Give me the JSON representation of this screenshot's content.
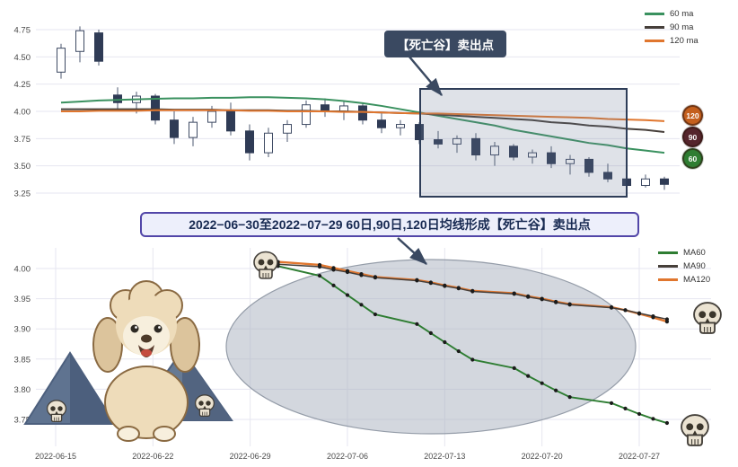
{
  "banner": {
    "text": "2022−06−30至2022−07−29 60日,90日,120日均线形成【死亡谷】卖出点"
  },
  "icons": {
    "skull": "skull-icon",
    "dog": "dog-illustration",
    "mountain": "mountain-icon"
  },
  "chart_data": [
    {
      "type": "candlestick",
      "title": "",
      "xlabel": "",
      "ylabel": "",
      "yticks": [
        "4.75",
        "4.50",
        "4.25",
        "4.00",
        "3.75",
        "3.50",
        "3.25"
      ],
      "ylim": [
        3.18,
        4.93
      ],
      "grid": true,
      "legend_position": "upper right",
      "legend": [
        {
          "label": "60 ma",
          "color": "#3a915f"
        },
        {
          "label": "90 ma",
          "color": "#463f3a"
        },
        {
          "label": "120 ma",
          "color": "#e0762e"
        }
      ],
      "annotation": {
        "label": "【死亡谷】卖出点"
      },
      "badges": [
        {
          "label": "120",
          "bg": "#c45f1d"
        },
        {
          "label": "90",
          "bg": "#55252c"
        },
        {
          "label": "60",
          "bg": "#2e7d32"
        }
      ],
      "candles": [
        [
          4.36,
          4.62,
          4.3,
          4.58
        ],
        [
          4.55,
          4.78,
          4.45,
          4.74
        ],
        [
          4.72,
          4.75,
          4.42,
          4.46
        ],
        [
          4.15,
          4.22,
          4.02,
          4.08
        ],
        [
          4.08,
          4.18,
          3.98,
          4.14
        ],
        [
          4.14,
          4.16,
          3.88,
          3.92
        ],
        [
          3.92,
          4.0,
          3.7,
          3.76
        ],
        [
          3.76,
          3.95,
          3.68,
          3.9
        ],
        [
          3.9,
          4.05,
          3.85,
          4.0
        ],
        [
          4.0,
          4.08,
          3.78,
          3.82
        ],
        [
          3.82,
          3.88,
          3.55,
          3.62
        ],
        [
          3.62,
          3.85,
          3.58,
          3.8
        ],
        [
          3.8,
          3.92,
          3.72,
          3.88
        ],
        [
          3.88,
          4.1,
          3.85,
          4.06
        ],
        [
          4.06,
          4.12,
          3.95,
          4.0
        ],
        [
          4.0,
          4.1,
          3.92,
          4.05
        ],
        [
          4.05,
          4.08,
          3.88,
          3.92
        ],
        [
          3.92,
          3.98,
          3.8,
          3.85
        ],
        [
          3.85,
          3.92,
          3.78,
          3.88
        ],
        [
          3.88,
          3.9,
          3.7,
          3.74
        ],
        [
          3.74,
          3.82,
          3.66,
          3.7
        ],
        [
          3.7,
          3.78,
          3.62,
          3.75
        ],
        [
          3.75,
          3.8,
          3.55,
          3.6
        ],
        [
          3.6,
          3.72,
          3.5,
          3.68
        ],
        [
          3.68,
          3.7,
          3.55,
          3.58
        ],
        [
          3.58,
          3.65,
          3.52,
          3.62
        ],
        [
          3.62,
          3.68,
          3.48,
          3.52
        ],
        [
          3.52,
          3.6,
          3.42,
          3.56
        ],
        [
          3.56,
          3.58,
          3.4,
          3.44
        ],
        [
          3.44,
          3.52,
          3.35,
          3.38
        ],
        [
          3.38,
          3.45,
          3.28,
          3.32
        ],
        [
          3.32,
          3.42,
          3.3,
          3.38
        ],
        [
          3.38,
          3.4,
          3.28,
          3.33
        ]
      ],
      "series": [
        {
          "name": "60 ma",
          "color": "#3a915f",
          "values": [
            4.08,
            4.09,
            4.1,
            4.105,
            4.11,
            4.115,
            4.12,
            4.12,
            4.125,
            4.125,
            4.13,
            4.13,
            4.125,
            4.12,
            4.11,
            4.095,
            4.075,
            4.05,
            4.02,
            3.99,
            3.96,
            3.93,
            3.9,
            3.87,
            3.83,
            3.8,
            3.77,
            3.74,
            3.71,
            3.69,
            3.66,
            3.64,
            3.62
          ]
        },
        {
          "name": "90 ma",
          "color": "#463f3a",
          "values": [
            4.02,
            4.02,
            4.02,
            4.02,
            4.02,
            4.02,
            4.015,
            4.015,
            4.015,
            4.01,
            4.01,
            4.01,
            4.005,
            4.005,
            4.0,
            4.0,
            3.995,
            3.99,
            3.985,
            3.98,
            3.97,
            3.96,
            3.95,
            3.94,
            3.93,
            3.92,
            3.9,
            3.89,
            3.87,
            3.86,
            3.84,
            3.83,
            3.81
          ]
        },
        {
          "name": "120 ma",
          "color": "#e0762e",
          "values": [
            4.0,
            4.0,
            4.005,
            4.005,
            4.005,
            4.01,
            4.01,
            4.01,
            4.01,
            4.01,
            4.005,
            4.005,
            4.0,
            4.0,
            4.0,
            3.995,
            3.995,
            3.99,
            3.985,
            3.98,
            3.98,
            3.975,
            3.97,
            3.965,
            3.96,
            3.955,
            3.95,
            3.945,
            3.94,
            3.93,
            3.925,
            3.92,
            3.91
          ]
        }
      ]
    },
    {
      "type": "line",
      "title": "",
      "xlabel": "",
      "ylabel": "",
      "yticks": [
        "4.00",
        "3.95",
        "3.90",
        "3.85",
        "3.80",
        "3.75"
      ],
      "ylim": [
        3.7,
        4.04
      ],
      "grid": true,
      "legend_position": "upper right",
      "xticklabels": [
        "2022-06-15",
        "2022-06-22",
        "2022-06-29",
        "2022-07-06",
        "2022-07-13",
        "2022-07-20",
        "2022-07-27"
      ],
      "legend": [
        {
          "label": "MA60",
          "color": "#2e7d32"
        },
        {
          "label": "MA90",
          "color": "#463f3a"
        },
        {
          "label": "MA120",
          "color": "#e0762e"
        }
      ],
      "dates": [
        "2022-06-30",
        "2022-07-01",
        "2022-07-04",
        "2022-07-05",
        "2022-07-06",
        "2022-07-07",
        "2022-07-08",
        "2022-07-11",
        "2022-07-12",
        "2022-07-13",
        "2022-07-14",
        "2022-07-15",
        "2022-07-18",
        "2022-07-19",
        "2022-07-20",
        "2022-07-21",
        "2022-07-22",
        "2022-07-25",
        "2022-07-26",
        "2022-07-27",
        "2022-07-28",
        "2022-07-29"
      ],
      "series": [
        {
          "name": "MA120",
          "color": "#e0762e",
          "values": [
            4.016,
            4.011,
            4.006,
            4.001,
            3.996,
            3.991,
            3.986,
            3.981,
            3.977,
            3.972,
            3.968,
            3.963,
            3.959,
            3.954,
            3.95,
            3.945,
            3.941,
            3.936,
            3.931,
            3.925,
            3.919,
            3.912
          ]
        },
        {
          "name": "MA90",
          "color": "#463f3a",
          "values": [
            4.012,
            4.007,
            4.003,
            3.998,
            3.994,
            3.989,
            3.985,
            3.98,
            3.976,
            3.971,
            3.967,
            3.962,
            3.958,
            3.953,
            3.949,
            3.944,
            3.94,
            3.935,
            3.931,
            3.926,
            3.921,
            3.916
          ]
        },
        {
          "name": "MA60",
          "color": "#2e7d32",
          "values": [
            4.02,
            4.004,
            3.988,
            3.972,
            3.956,
            3.94,
            3.924,
            3.908,
            3.893,
            3.878,
            3.863,
            3.849,
            3.835,
            3.822,
            3.81,
            3.798,
            3.787,
            3.777,
            3.768,
            3.759,
            3.751,
            3.744
          ]
        }
      ]
    }
  ]
}
